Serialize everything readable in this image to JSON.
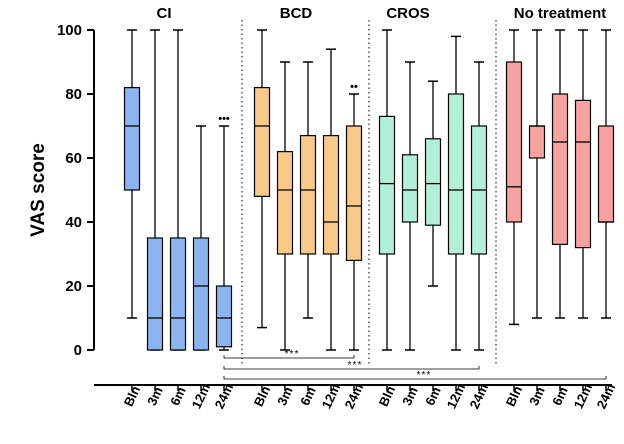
{
  "chart_data": {
    "type": "boxplot",
    "title": "",
    "ylabel": "VAS score",
    "ylim": [
      0,
      100
    ],
    "yticks": [
      0,
      20,
      40,
      60,
      80,
      100
    ],
    "groups": [
      {
        "name": "CI",
        "color": "#8AB4F0",
        "boxes": [
          {
            "label": "Bln",
            "min": 10,
            "q1": 50,
            "median": 70,
            "q3": 82,
            "max": 100
          },
          {
            "label": "3m",
            "min": 0,
            "q1": 0,
            "median": 10,
            "q3": 35,
            "max": 100
          },
          {
            "label": "6m",
            "min": 0,
            "q1": 0,
            "median": 10,
            "q3": 35,
            "max": 100
          },
          {
            "label": "12m",
            "min": 0,
            "q1": 0,
            "median": 20,
            "q3": 35,
            "max": 70
          },
          {
            "label": "24m",
            "min": 0,
            "q1": 1,
            "median": 10,
            "q3": 20,
            "max": 70,
            "annotation": "•••"
          }
        ]
      },
      {
        "name": "BCD",
        "color": "#F9C98A",
        "boxes": [
          {
            "label": "Bln",
            "min": 7,
            "q1": 48,
            "median": 70,
            "q3": 82,
            "max": 100
          },
          {
            "label": "3m",
            "min": 0,
            "q1": 30,
            "median": 50,
            "q3": 62,
            "max": 90
          },
          {
            "label": "6m",
            "min": 10,
            "q1": 30,
            "median": 50,
            "q3": 67,
            "max": 90
          },
          {
            "label": "12m",
            "min": 0,
            "q1": 30,
            "median": 40,
            "q3": 67,
            "max": 94
          },
          {
            "label": "24m",
            "min": 0,
            "q1": 28,
            "median": 45,
            "q3": 70,
            "max": 80,
            "annotation": "••"
          }
        ]
      },
      {
        "name": "CROS",
        "color": "#B2EFD9",
        "boxes": [
          {
            "label": "Bln",
            "min": 0,
            "q1": 30,
            "median": 52,
            "q3": 73,
            "max": 100
          },
          {
            "label": "3m",
            "min": 0,
            "q1": 40,
            "median": 50,
            "q3": 61,
            "max": 90
          },
          {
            "label": "6m",
            "min": 20,
            "q1": 39,
            "median": 52,
            "q3": 66,
            "max": 84
          },
          {
            "label": "12m",
            "min": 0,
            "q1": 30,
            "median": 50,
            "q3": 80,
            "max": 98
          },
          {
            "label": "24m",
            "min": 0,
            "q1": 30,
            "median": 50,
            "q3": 70,
            "max": 90
          }
        ]
      },
      {
        "name": "No treatment",
        "color": "#F7A1A1",
        "boxes": [
          {
            "label": "Bln",
            "min": 8,
            "q1": 40,
            "median": 51,
            "q3": 90,
            "max": 100
          },
          {
            "label": "3m",
            "min": 10,
            "q1": 60,
            "median": 70,
            "q3": 70,
            "max": 100
          },
          {
            "label": "6m",
            "min": 10,
            "q1": 33,
            "median": 65,
            "q3": 80,
            "max": 100
          },
          {
            "label": "12m",
            "min": 10,
            "q1": 32,
            "median": 65,
            "q3": 78,
            "max": 100
          },
          {
            "label": "24m",
            "min": 10,
            "q1": 40,
            "median": 40,
            "q3": 70,
            "max": 100
          }
        ]
      }
    ],
    "significance": [
      {
        "label": "***",
        "from": "CI 24m",
        "to": "BCD 24m"
      },
      {
        "label": "***",
        "from": "CI 24m",
        "to": "CROS 24m"
      },
      {
        "label": "***",
        "from": "CI 24m",
        "to": "No treatment 24m"
      }
    ]
  }
}
